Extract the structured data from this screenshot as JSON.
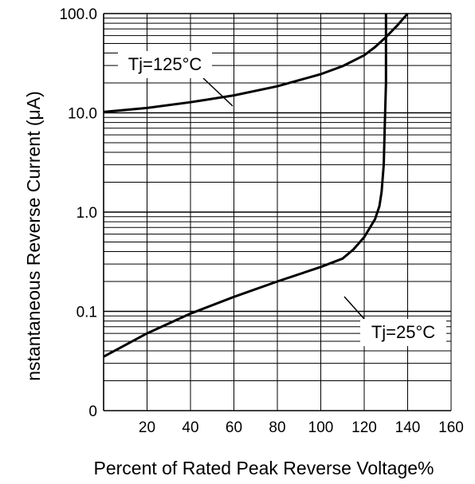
{
  "chart_data": {
    "type": "line",
    "title": "",
    "xlabel": "Percent of Rated Peak Reverse Voltage%",
    "ylabel": "nstantaneous Reverse Current (μA)",
    "x_scale": "linear",
    "y_scale": "log",
    "xlim": [
      0,
      160
    ],
    "ylim": [
      0.01,
      100
    ],
    "x_ticks": [
      20,
      40,
      60,
      80,
      100,
      120,
      140,
      160
    ],
    "y_tick_labels": [
      {
        "value": 100,
        "label": "100.0"
      },
      {
        "value": 10,
        "label": "10.0"
      },
      {
        "value": 1,
        "label": "1.0"
      },
      {
        "value": 0.1,
        "label": "0.1"
      },
      {
        "value": 0.01,
        "label": "0"
      }
    ],
    "grid": true,
    "series": [
      {
        "name": "Tj=125°C",
        "x": [
          0,
          20,
          40,
          60,
          80,
          100,
          110,
          120,
          125,
          130,
          135,
          140
        ],
        "y": [
          10.2,
          11.2,
          12.8,
          15.0,
          18.5,
          24.5,
          29.5,
          38,
          46,
          58,
          75,
          100
        ]
      },
      {
        "name": "Tj=25°C",
        "x": [
          0,
          20,
          40,
          60,
          80,
          100,
          110,
          115,
          120,
          125,
          127,
          128,
          129,
          129.5,
          130,
          130,
          130
        ],
        "y": [
          0.035,
          0.06,
          0.095,
          0.14,
          0.2,
          0.28,
          0.34,
          0.42,
          0.56,
          0.85,
          1.15,
          1.6,
          3,
          8,
          20,
          50,
          100
        ]
      }
    ],
    "annotations": [
      {
        "text": "Tj=125°C",
        "series": 0
      },
      {
        "text": "Tj=25°C",
        "series": 1
      }
    ]
  }
}
